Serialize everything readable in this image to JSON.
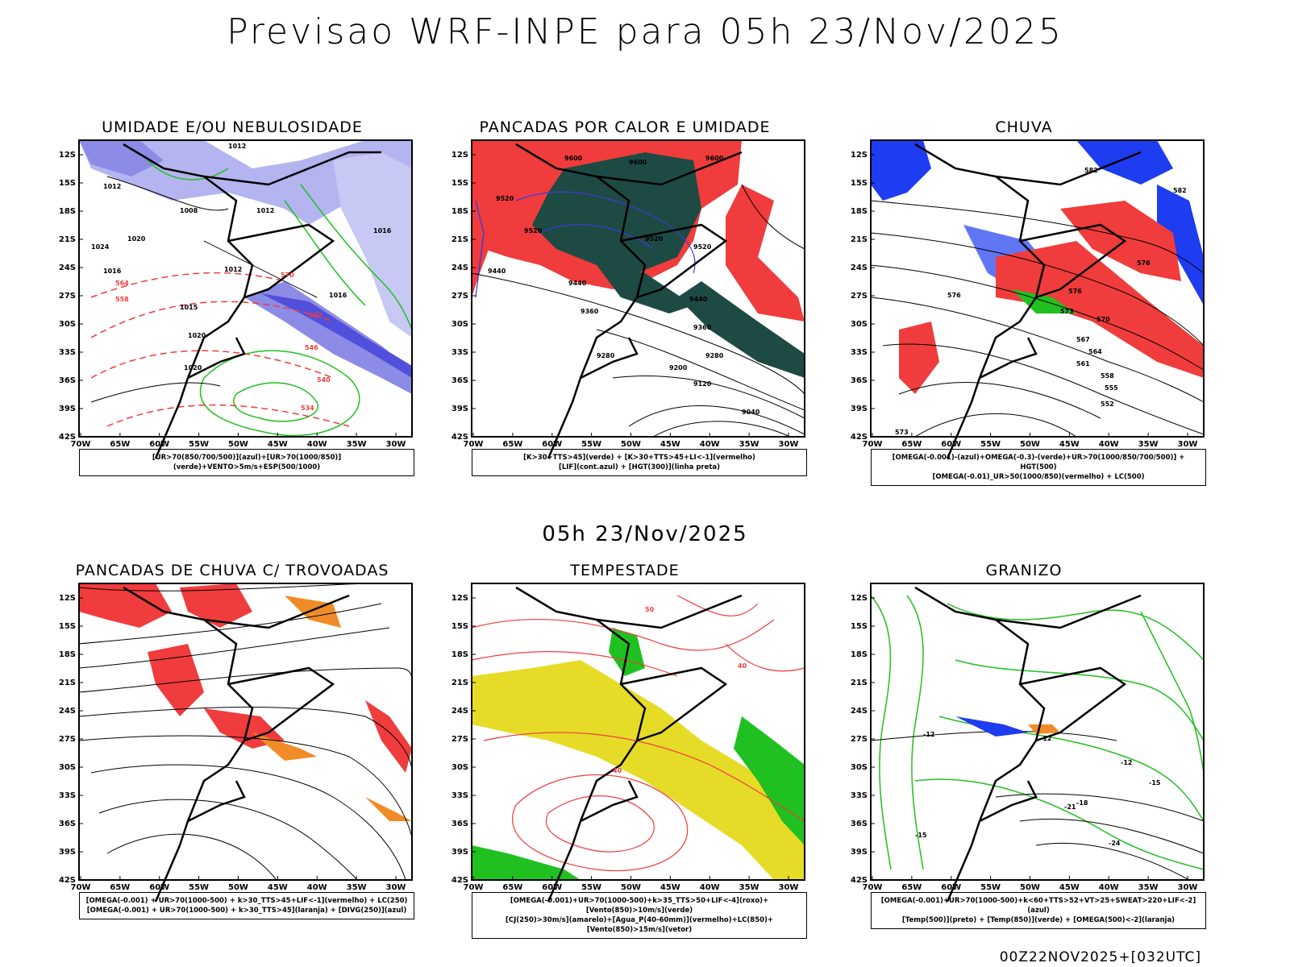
{
  "header": {
    "title": "Previsao WRF-INPE  para 05h 23/Nov/2025"
  },
  "middle": {
    "time_label": "05h 23/Nov/2025"
  },
  "footer": {
    "run_info": "00Z22NOV2025+[032UTC]"
  },
  "axes": {
    "lat_labels": [
      "12S",
      "15S",
      "18S",
      "21S",
      "24S",
      "27S",
      "30S",
      "33S",
      "36S",
      "39S",
      "42S"
    ],
    "lon_labels": [
      "70W",
      "65W",
      "60W",
      "55W",
      "50W",
      "45W",
      "40W",
      "35W",
      "30W"
    ]
  },
  "panels": [
    {
      "title": "UMIDADE E/OU NEBULOSIDADE",
      "legend_lines": [
        "[UR>70(850/700/500)](azul)+[UR>70(1000/850)](verde)+VENTO>5m/s+ESP(500/1000)"
      ],
      "contour_labels": [
        "1012",
        "1012",
        "1008",
        "1012",
        "1016",
        "1012",
        "1016",
        "1020",
        "1020",
        "1015",
        "1024",
        "1016",
        "1020",
        "570",
        "564",
        "558",
        "552",
        "546",
        "540",
        "534"
      ]
    },
    {
      "title": "PANCADAS POR CALOR E UMIDADE",
      "legend_lines": [
        "[K>30+TTS>45](verde) + [K>30+TTS>45+LI<-1](vermelho)",
        "[LIF](cont.azul) + [HGT(300)](linha preta)"
      ],
      "contour_labels": [
        "9600",
        "9600",
        "9600",
        "9520",
        "9520",
        "9520",
        "9520",
        "9440",
        "9440",
        "9440",
        "9360",
        "9360",
        "9280",
        "9280",
        "9200",
        "9120",
        "9040"
      ]
    },
    {
      "title": "CHUVA",
      "legend_lines": [
        "[OMEGA(-0.001)-(azul)+OMEGA(-0.3)-(verde)+UR>70(1000/850/700/500)] + HGT(500)",
        "[OMEGA(-0.01)_UR>50(1000/850)(vermelho) + LC(500)"
      ],
      "contour_labels": [
        "576",
        "576",
        "576",
        "573",
        "570",
        "567",
        "564",
        "561",
        "558",
        "555",
        "552",
        "573",
        "582",
        "582"
      ]
    },
    {
      "title": "PANCADAS DE CHUVA C/ TROVOADAS",
      "legend_lines": [
        "[OMEGA(-0.001) + UR>70(1000-500) + k>30_TTS>45+LIF<-1](vermelho) + LC(250)",
        "[OMEGA(-0.001) + UR>70(1000-500) + k>30_TTS>45](laranja) + [DIVG(250)](azul)"
      ],
      "contour_labels": []
    },
    {
      "title": "TEMPESTADE",
      "legend_lines": [
        "[OMEGA(-0.001)+UR>70(1000-500)+k>35_TTS>50+LIF<-4](roxo)+[Vento(850)>10m/s](verde)",
        "[CJ(250)>30m/s](amarelo)+[Agua_P(40-60mm)](vermelho)+LC(850)+[Vento(850)>15m/s](vetor)"
      ],
      "contour_labels": [
        "40",
        "50",
        "40"
      ]
    },
    {
      "title": "GRANIZO",
      "legend_lines": [
        "[OMEGA(-0.001)+UR>70(1000-500)+k<60+TTS>52+VT>25+SWEAT>220+LIF<-2](azul)",
        "[Temp(500)](preto) + [Temp(850)](verde) + [OMEGA(500)<-2](laranja)"
      ],
      "contour_labels": [
        "-12",
        "-12",
        "-12",
        "-15",
        "-18",
        "-21",
        "-15",
        "-24"
      ]
    }
  ],
  "colors": {
    "blue_fill": "#8c8ce6",
    "blue_dark": "#3b3bdc",
    "red": "#f03c3c",
    "green": "#20c020",
    "dark_teal": "#1e4a44",
    "yellow": "#e6dc28",
    "orange": "#f08c28",
    "pure_blue": "#1e3cf0"
  }
}
